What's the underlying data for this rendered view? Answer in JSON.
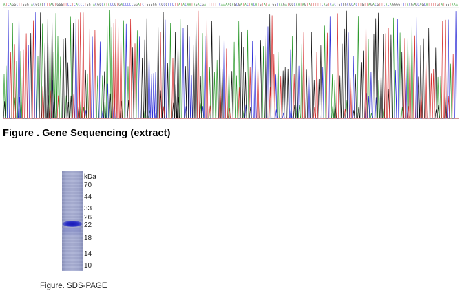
{
  "figure1": {
    "caption": "Figure . Gene Sequencing (extract)",
    "trace_colors": {
      "A": "#2e9a2e",
      "C": "#2b2bd6",
      "G": "#111111",
      "T": "#d42a2a"
    }
  },
  "figure2": {
    "caption": "Figure. SDS-PAGE",
    "unit_label": "kDa",
    "markers": [
      "70",
      "44",
      "33",
      "26",
      "22",
      "18",
      "14",
      "10"
    ],
    "band_color": "#1a1ab8",
    "lane_color": "#a4aad0"
  }
}
